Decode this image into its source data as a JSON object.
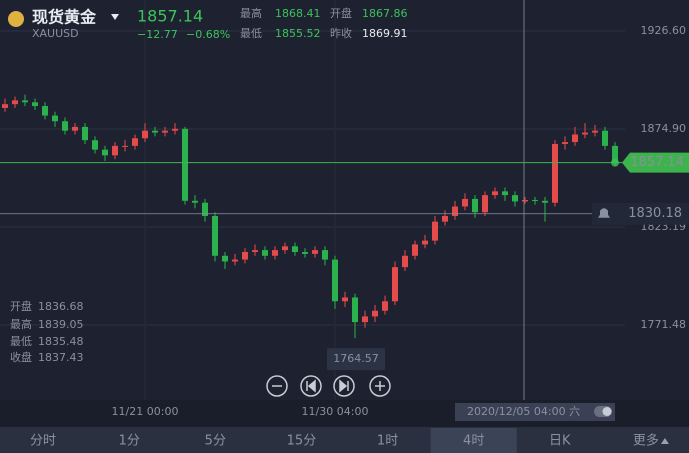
{
  "header": {
    "name": "现货黄金",
    "symbol": "XAUUSD",
    "price": "1857.14",
    "change": "−12.77",
    "change_pct": "−0.68%",
    "high_label": "最高",
    "high": "1868.41",
    "open_label": "开盘",
    "open": "1867.86",
    "low_label": "最低",
    "low": "1855.52",
    "prev_close_label": "昨收",
    "prev_close": "1869.91"
  },
  "ohlc_panel": {
    "open_label": "开盘",
    "high_label": "最高",
    "low_label": "最低",
    "close_label": "收盘"
  },
  "tabs": [
    "分时",
    "1分",
    "5分",
    "15分",
    "1时",
    "4时",
    "日K",
    "更多"
  ],
  "selected_tab": "4时",
  "chart_data": {
    "type": "candlestick",
    "categories": [
      null,
      null,
      null,
      null,
      null,
      null,
      null,
      null,
      null,
      null,
      null,
      null,
      null,
      null,
      "11/21 00:00",
      null,
      null,
      null,
      null,
      null,
      null,
      null,
      null,
      null,
      null,
      null,
      null,
      null,
      null,
      null,
      null,
      null,
      null,
      "11/30 04:00",
      null,
      null,
      null,
      null,
      null,
      null,
      null,
      null,
      null,
      null,
      null,
      null,
      null,
      null,
      null,
      null,
      null,
      null,
      null,
      null,
      null,
      null,
      null,
      null,
      null,
      null,
      null,
      null
    ],
    "open": [
      1886,
      1888,
      1890,
      1889,
      1887,
      1882,
      1879,
      1874,
      1876,
      1869,
      1864,
      1861,
      1866,
      1866,
      1870,
      1874,
      1873,
      1874,
      1875,
      1837,
      1836,
      1829,
      1808,
      1805,
      1806,
      1810,
      1811,
      1808,
      1811,
      1813,
      1810,
      1809,
      1811,
      1806,
      1784,
      1786,
      1773,
      1776,
      1779,
      1784,
      1802,
      1808,
      1814,
      1816,
      1826,
      1829,
      1834,
      1838,
      1831,
      1840,
      1842,
      1840,
      1836.68,
      1837.43,
      1837,
      1836,
      1867,
      1868,
      1872,
      1873,
      1874,
      1866
    ],
    "high": [
      1891,
      1892,
      1893,
      1891,
      1889,
      1884,
      1881,
      1878,
      1878,
      1871,
      1866,
      1868,
      1869,
      1872,
      1878,
      1876,
      1876,
      1878,
      1876,
      1840,
      1838,
      1831,
      1810,
      1809,
      1812,
      1814,
      1813,
      1813,
      1815,
      1815,
      1812,
      1813,
      1813,
      1808,
      1789,
      1788,
      1779,
      1782,
      1787,
      1805,
      1811,
      1816,
      1819,
      1829,
      1832,
      1837,
      1841,
      1840,
      1842,
      1844,
      1844,
      1842,
      1839.05,
      1839,
      1839,
      1869,
      1871,
      1876,
      1878,
      1877,
      1876,
      1868
    ],
    "low": [
      1884,
      1886,
      1887,
      1885,
      1880,
      1876,
      1872,
      1872,
      1867,
      1862,
      1858,
      1859,
      1863,
      1864,
      1868,
      1871,
      1871,
      1872,
      1835,
      1833,
      1826,
      1805,
      1801,
      1803,
      1804,
      1808,
      1806,
      1806,
      1809,
      1808,
      1807,
      1807,
      1803,
      1780,
      1781,
      1764.57,
      1770,
      1773,
      1777,
      1782,
      1800,
      1806,
      1812,
      1814,
      1824,
      1827,
      1832,
      1828,
      1829,
      1838,
      1837,
      1834,
      1835.48,
      1835,
      1826,
      1834,
      1864,
      1866,
      1870,
      1871,
      1864,
      1855.52
    ],
    "close": [
      1888,
      1890,
      1889,
      1887,
      1882,
      1879,
      1874,
      1876,
      1869,
      1864,
      1861,
      1866,
      1866,
      1870,
      1874,
      1873,
      1874,
      1875,
      1837,
      1836,
      1829,
      1808,
      1805,
      1806,
      1810,
      1811,
      1808,
      1811,
      1813,
      1810,
      1809,
      1811,
      1806,
      1784,
      1786,
      1773,
      1776,
      1779,
      1784,
      1802,
      1808,
      1814,
      1816,
      1826,
      1829,
      1834,
      1838,
      1831,
      1840,
      1842,
      1840,
      1836.68,
      1837.43,
      1837,
      1836,
      1867,
      1868,
      1872,
      1873,
      1874,
      1866,
      1857.14
    ],
    "up_color": "#e54b4b",
    "down_color": "#2bb24c",
    "ylim": [
      1731.9,
      1942.97
    ],
    "yticks": [
      {
        "value": 1926.6,
        "label": "1926.60"
      },
      {
        "value": 1874.9,
        "label": "1874.90"
      },
      1823.19,
      1771.48
    ],
    "grid": true,
    "last_price": 1857.14,
    "crosshair_price": 1830.18,
    "crosshair_time": "2020/12/05 04:00 六"
  }
}
